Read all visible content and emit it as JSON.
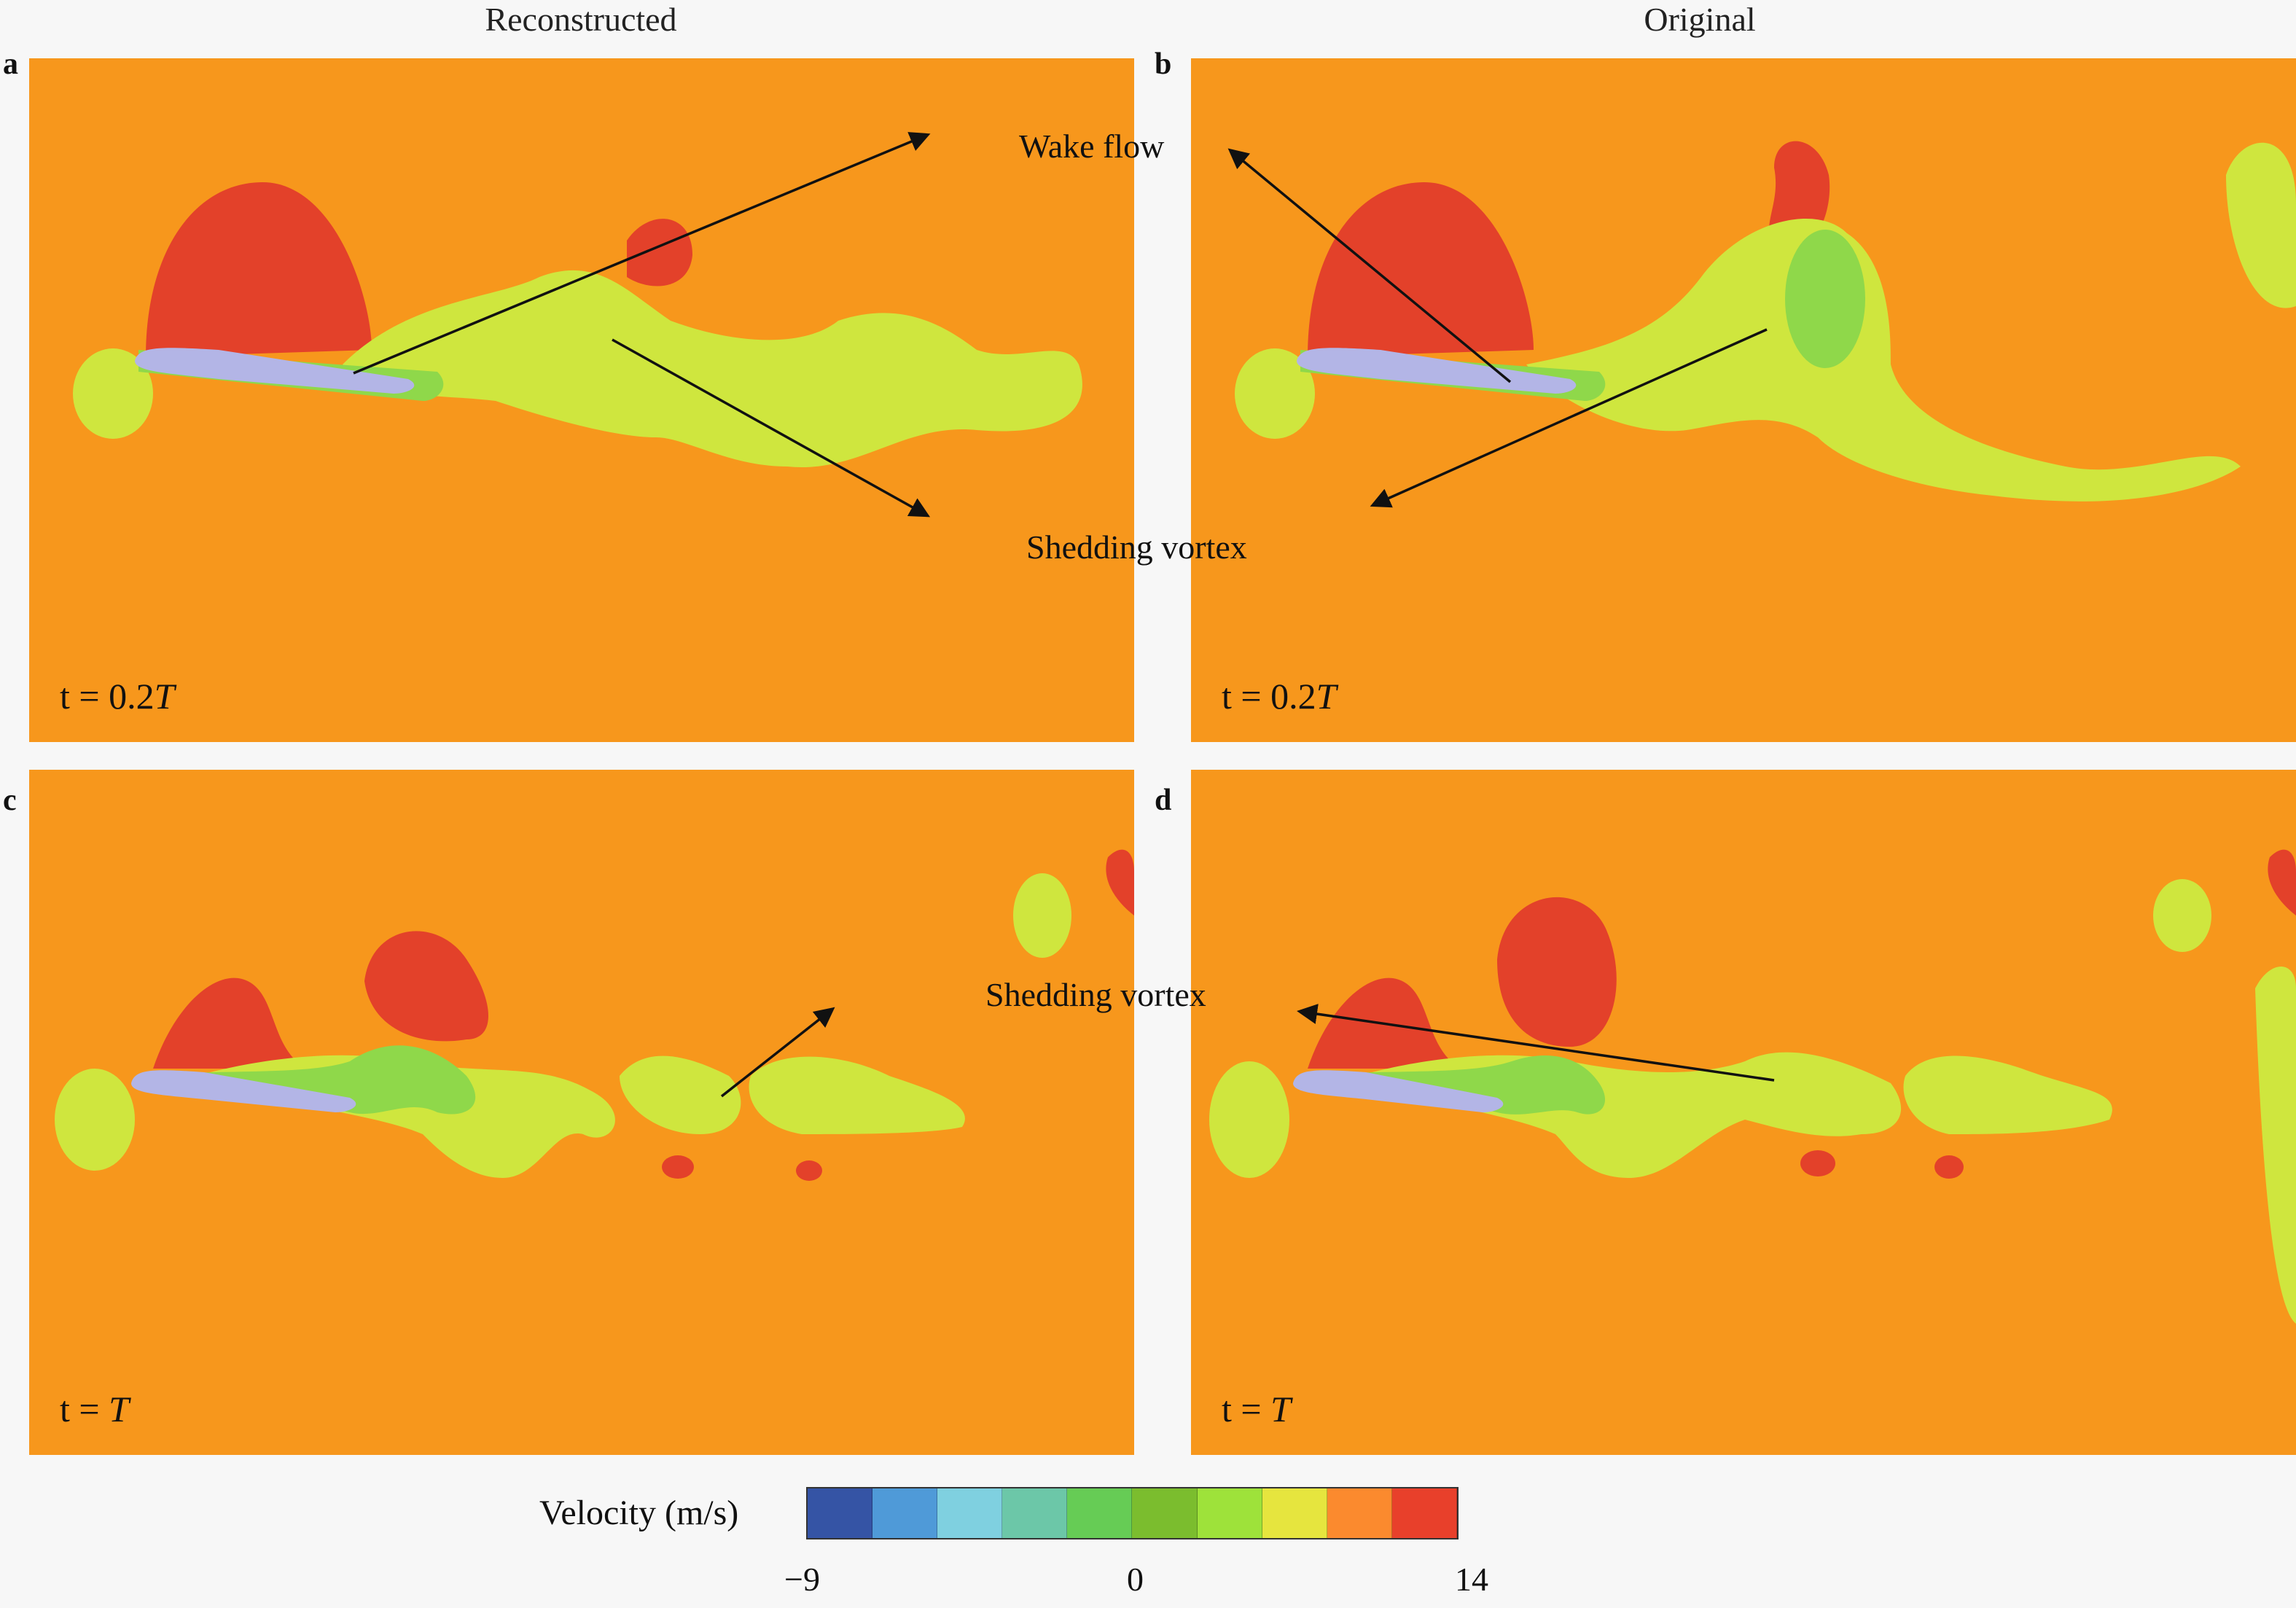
{
  "columns": {
    "left": "Reconstructed",
    "right": "Original"
  },
  "panels": [
    {
      "letter": "a",
      "time_prefix": "t = ",
      "time_value": "0.2",
      "time_unit": "T"
    },
    {
      "letter": "b",
      "time_prefix": "t = ",
      "time_value": "0.2",
      "time_unit": "T"
    },
    {
      "letter": "c",
      "time_prefix": "t = ",
      "time_value": "",
      "time_unit": "T"
    },
    {
      "letter": "d",
      "time_prefix": "t = ",
      "time_value": "",
      "time_unit": "T"
    }
  ],
  "annotations": {
    "wake_flow": "Wake flow",
    "shedding_vortex_top": "Shedding vortex",
    "shedding_vortex_bottom": "Shedding vortex"
  },
  "legend": {
    "title": "Velocity (m/s)",
    "min_label": "−9",
    "mid_label": "0",
    "max_label": "14",
    "colors": [
      "#3554a5",
      "#4f9ad8",
      "#7fd0e0",
      "#6cc7a8",
      "#66cc55",
      "#7bbd2e",
      "#9ee23a",
      "#e6e53e",
      "#fb8a2e",
      "#e8402b"
    ]
  },
  "field_colors": {
    "background": "#f7971c",
    "high": "#e3412a",
    "wake": "#cfe63e",
    "mid": "#8fd84a",
    "low": "#3a6fd8",
    "airfoil": "#b3b5e6"
  }
}
